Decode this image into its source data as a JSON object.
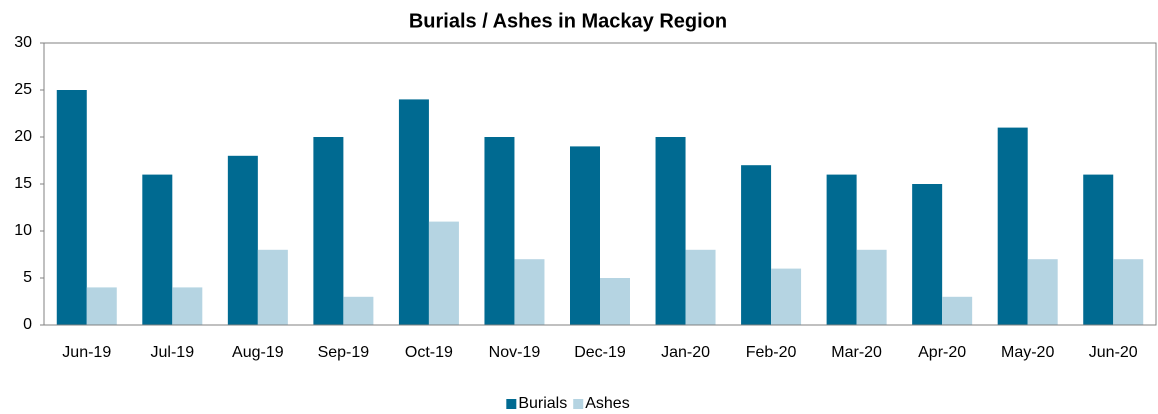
{
  "chart_data": {
    "type": "bar",
    "title": "Burials / Ashes in Mackay Region",
    "categories": [
      "Jun-19",
      "Jul-19",
      "Aug-19",
      "Sep-19",
      "Oct-19",
      "Nov-19",
      "Dec-19",
      "Jan-20",
      "Feb-20",
      "Mar-20",
      "Apr-20",
      "May-20",
      "Jun-20"
    ],
    "series": [
      {
        "name": "Burials",
        "color": "#006a91",
        "values": [
          25,
          16,
          18,
          20,
          24,
          20,
          19,
          20,
          17,
          16,
          15,
          21,
          16
        ]
      },
      {
        "name": "Ashes",
        "color": "#b5d4e2",
        "values": [
          4,
          4,
          8,
          3,
          11,
          7,
          5,
          8,
          6,
          8,
          3,
          7,
          7
        ]
      }
    ],
    "ylim": [
      0,
      30
    ],
    "yticks": [
      0,
      5,
      10,
      15,
      20,
      25,
      30
    ],
    "grid": false,
    "legend": "bottom"
  }
}
